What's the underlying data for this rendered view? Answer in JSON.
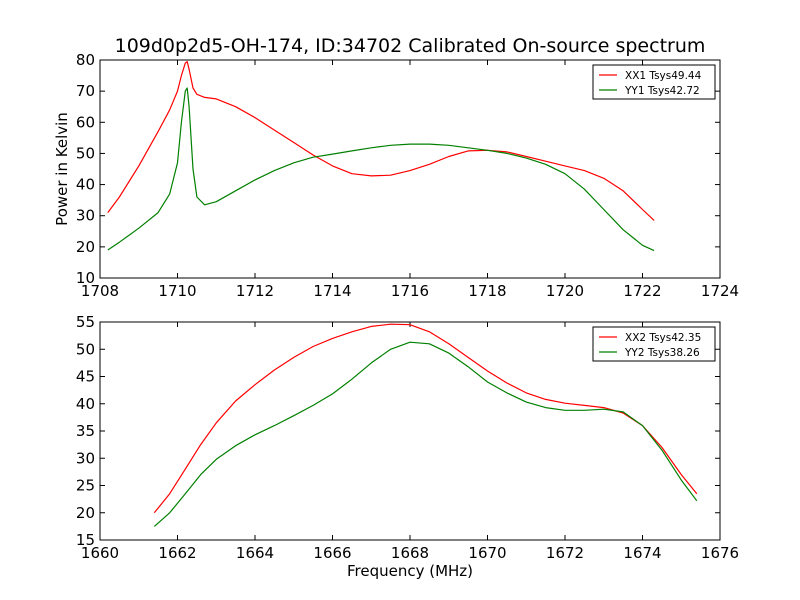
{
  "figure": {
    "title": "109d0p2d5-OH-174, ID:34702 Calibrated On-source spectrum"
  },
  "chart_data": [
    {
      "type": "line",
      "title": "109d0p2d5-OH-174, ID:34702 Calibrated On-source spectrum",
      "xlabel": "",
      "ylabel": "Power in Kelvin",
      "xlim": [
        1708,
        1724
      ],
      "ylim": [
        10,
        80
      ],
      "xticks": [
        1708,
        1710,
        1712,
        1714,
        1716,
        1718,
        1720,
        1722,
        1724
      ],
      "yticks": [
        10,
        20,
        30,
        40,
        50,
        60,
        70,
        80
      ],
      "grid": false,
      "legend": "top-right",
      "series": [
        {
          "name": "XX1 Tsys49.44",
          "color": "#ff0000",
          "x": [
            1708.2,
            1708.5,
            1709.0,
            1709.5,
            1709.8,
            1710.0,
            1710.1,
            1710.2,
            1710.25,
            1710.3,
            1710.4,
            1710.5,
            1710.7,
            1711.0,
            1711.5,
            1712.0,
            1712.5,
            1713.0,
            1713.5,
            1714.0,
            1714.5,
            1715.0,
            1715.5,
            1716.0,
            1716.5,
            1717.0,
            1717.5,
            1718.0,
            1718.5,
            1719.0,
            1719.5,
            1720.0,
            1720.5,
            1721.0,
            1721.5,
            1722.0,
            1722.3
          ],
          "y": [
            31,
            36,
            46,
            57,
            64,
            70,
            75,
            79,
            79.5,
            77,
            71,
            69,
            68,
            67.5,
            65,
            61.5,
            57.5,
            53.5,
            49.5,
            46,
            43.5,
            42.8,
            43,
            44.5,
            46.5,
            49,
            50.8,
            51,
            50.5,
            49,
            47.5,
            46,
            44.5,
            42,
            38,
            32,
            28.5
          ]
        },
        {
          "name": "YY1 Tsys42.72",
          "color": "#008000",
          "x": [
            1708.2,
            1708.5,
            1709.0,
            1709.5,
            1709.8,
            1710.0,
            1710.1,
            1710.2,
            1710.25,
            1710.3,
            1710.4,
            1710.5,
            1710.7,
            1711.0,
            1711.5,
            1712.0,
            1712.5,
            1713.0,
            1713.5,
            1714.0,
            1714.5,
            1715.0,
            1715.5,
            1716.0,
            1716.5,
            1717.0,
            1717.5,
            1718.0,
            1718.5,
            1719.0,
            1719.5,
            1720.0,
            1720.5,
            1721.0,
            1721.5,
            1722.0,
            1722.3
          ],
          "y": [
            19,
            21.5,
            26,
            31,
            37,
            47,
            60,
            70,
            71,
            65,
            45,
            36,
            33.5,
            34.5,
            38,
            41.5,
            44.5,
            47,
            48.8,
            49.8,
            50.8,
            51.8,
            52.6,
            53,
            53,
            52.6,
            51.8,
            51,
            50,
            48.5,
            46.5,
            43.5,
            38.5,
            32,
            25.5,
            20.5,
            18.8
          ]
        }
      ]
    },
    {
      "type": "line",
      "title": "",
      "xlabel": "Frequency (MHz)",
      "ylabel": "",
      "xlim": [
        1660,
        1676
      ],
      "ylim": [
        15,
        55
      ],
      "xticks": [
        1660,
        1662,
        1664,
        1666,
        1668,
        1670,
        1672,
        1674,
        1676
      ],
      "yticks": [
        15,
        20,
        25,
        30,
        35,
        40,
        45,
        50,
        55
      ],
      "grid": false,
      "legend": "top-right",
      "series": [
        {
          "name": "XX2 Tsys42.35",
          "color": "#ff0000",
          "x": [
            1661.4,
            1661.8,
            1662.2,
            1662.6,
            1663.0,
            1663.5,
            1664.0,
            1664.5,
            1665.0,
            1665.5,
            1666.0,
            1666.5,
            1667.0,
            1667.5,
            1668.0,
            1668.5,
            1669.0,
            1669.5,
            1670.0,
            1670.5,
            1671.0,
            1671.5,
            1672.0,
            1672.5,
            1673.0,
            1673.5,
            1674.0,
            1674.5,
            1675.0,
            1675.4
          ],
          "y": [
            20,
            23.5,
            28,
            32.5,
            36.5,
            40.5,
            43.5,
            46.2,
            48.5,
            50.5,
            52,
            53.2,
            54.2,
            54.6,
            54.5,
            53.2,
            51,
            48.5,
            46,
            43.8,
            42,
            40.8,
            40.1,
            39.7,
            39.3,
            38.3,
            36,
            32,
            27,
            23.5
          ]
        },
        {
          "name": "YY2 Tsys38.26",
          "color": "#008000",
          "x": [
            1661.4,
            1661.8,
            1662.2,
            1662.6,
            1663.0,
            1663.5,
            1664.0,
            1664.5,
            1665.0,
            1665.5,
            1666.0,
            1666.5,
            1667.0,
            1667.5,
            1668.0,
            1668.5,
            1669.0,
            1669.5,
            1670.0,
            1670.5,
            1671.0,
            1671.5,
            1672.0,
            1672.5,
            1673.0,
            1673.5,
            1674.0,
            1674.5,
            1675.0,
            1675.4
          ],
          "y": [
            17.5,
            20,
            23.5,
            27,
            29.8,
            32.3,
            34.3,
            36,
            37.8,
            39.7,
            41.8,
            44.5,
            47.5,
            50,
            51.3,
            51,
            49.3,
            46.8,
            44,
            42,
            40.3,
            39.3,
            38.8,
            38.8,
            39,
            38.5,
            36,
            31.5,
            26,
            22.2
          ]
        }
      ]
    }
  ]
}
